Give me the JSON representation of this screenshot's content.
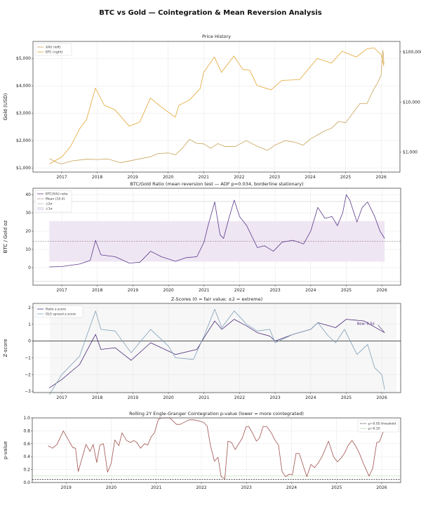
{
  "chart_data": [
    {
      "type": "line",
      "title": "Price History",
      "suptitle": "BTC vs Gold — Cointegration & Mean Reversion Analysis",
      "ylabel": "Gold (USD)",
      "xlim": [
        2016.19,
        2026.53
      ],
      "ylim": [
        850,
        5620
      ],
      "ylim_right": [
        400,
        162000
      ],
      "y_right_scale": "log",
      "xticks": [
        "2017",
        "2018",
        "2019",
        "2020",
        "2021",
        "2022",
        "2023",
        "2024",
        "2025",
        "2026"
      ],
      "yticks": [
        {
          "v": 1000,
          "label": "$1,000"
        },
        {
          "v": 2000,
          "label": "$2,000"
        },
        {
          "v": 3000,
          "label": "$3,000"
        },
        {
          "v": 4000,
          "label": "$4,000"
        },
        {
          "v": 5000,
          "label": "$5,000"
        }
      ],
      "yticks_right": [
        {
          "v": 1000,
          "label": "$1,000"
        },
        {
          "v": 10000,
          "label": "$10,000"
        },
        {
          "v": 100000,
          "label": "$100,000"
        }
      ],
      "legend_position": "top-left",
      "grid": true,
      "series": [
        {
          "name": "XAU (left)",
          "color": "#c9a45a",
          "axis": "left",
          "x": [
            2016.65,
            2016.9,
            2017.0,
            2017.3,
            2017.7,
            2018.0,
            2018.3,
            2018.65,
            2019.0,
            2019.5,
            2019.7,
            2020.0,
            2020.2,
            2020.4,
            2020.6,
            2020.8,
            2021.0,
            2021.2,
            2021.4,
            2021.6,
            2021.9,
            2022.2,
            2022.5,
            2022.8,
            2023.0,
            2023.3,
            2023.6,
            2023.8,
            2024.0,
            2024.2,
            2024.4,
            2024.6,
            2024.8,
            2025.0,
            2025.2,
            2025.4,
            2025.6,
            2025.8,
            2025.9,
            2026.0,
            2026.05,
            2026.08
          ],
          "y": [
            1340,
            1180,
            1150,
            1260,
            1320,
            1310,
            1330,
            1190,
            1280,
            1410,
            1520,
            1550,
            1480,
            1720,
            2050,
            1900,
            1880,
            1720,
            1890,
            1780,
            1790,
            2000,
            1800,
            1640,
            1830,
            2000,
            1930,
            1830,
            2050,
            2200,
            2350,
            2450,
            2700,
            2650,
            3000,
            3350,
            3350,
            3900,
            4100,
            4400,
            5300,
            4800
          ]
        },
        {
          "name": "BTC (right)",
          "color": "#e3a633",
          "axis": "right",
          "x": [
            2016.65,
            2017.0,
            2017.25,
            2017.5,
            2017.7,
            2017.95,
            2018.2,
            2018.5,
            2018.9,
            2019.2,
            2019.5,
            2019.8,
            2020.2,
            2020.3,
            2020.6,
            2020.9,
            2021.0,
            2021.3,
            2021.5,
            2021.85,
            2022.1,
            2022.3,
            2022.5,
            2022.9,
            2023.2,
            2023.7,
            2024.0,
            2024.2,
            2024.6,
            2024.9,
            2025.3,
            2025.6,
            2025.8,
            2026.0,
            2026.08
          ],
          "y": [
            580,
            800,
            1300,
            2900,
            4500,
            19000,
            8600,
            7000,
            3300,
            4000,
            12000,
            8000,
            5000,
            8600,
            11000,
            18500,
            39000,
            79000,
            39000,
            83000,
            45000,
            43000,
            21500,
            17500,
            27000,
            28000,
            50000,
            74000,
            60000,
            103000,
            79000,
            115000,
            121000,
            88000,
            52000
          ]
        }
      ]
    },
    {
      "type": "line",
      "title": "BTC/Gold Ratio (mean reversion test — ADF p=0.034, borderline stationary)",
      "ylabel": "BTC / Gold oz",
      "xlim": [
        2016.19,
        2026.53
      ],
      "ylim": [
        -9.6,
        43.5
      ],
      "xticks": [
        "2017",
        "2018",
        "2019",
        "2020",
        "2021",
        "2022",
        "2023",
        "2024",
        "2025",
        "2026"
      ],
      "yticks": [
        {
          "v": 0,
          "label": "0"
        },
        {
          "v": 10,
          "label": "10"
        },
        {
          "v": 20,
          "label": "20"
        },
        {
          "v": 30,
          "label": "30"
        },
        {
          "v": 40,
          "label": "40"
        }
      ],
      "mean": 14.4,
      "band_1sigma": [
        3.3,
        25.5
      ],
      "band_2sigma": [
        -7.4,
        36.2
      ],
      "legend": [
        "BTC/XAU ratio",
        "Mean (14.4)",
        "±2σ",
        "±1σ"
      ],
      "legend_position": "top-left",
      "colors": {
        "line": "#5b3a8c",
        "mean": "#7a5a6a",
        "band": "#efe6f3",
        "sigma2": "#cccccc"
      },
      "series": [
        {
          "name": "BTC/XAU ratio",
          "x": [
            2016.65,
            2017.0,
            2017.5,
            2017.8,
            2017.95,
            2018.1,
            2018.5,
            2018.9,
            2019.2,
            2019.5,
            2019.8,
            2020.2,
            2020.5,
            2020.8,
            2021.0,
            2021.1,
            2021.3,
            2021.45,
            2021.55,
            2021.7,
            2021.85,
            2022.0,
            2022.2,
            2022.4,
            2022.5,
            2022.7,
            2022.95,
            2023.2,
            2023.5,
            2023.8,
            2024.0,
            2024.2,
            2024.4,
            2024.6,
            2024.75,
            2024.9,
            2025.0,
            2025.1,
            2025.3,
            2025.45,
            2025.6,
            2025.8,
            2025.95,
            2026.08
          ],
          "y": [
            0.4,
            0.6,
            2,
            4,
            15,
            7,
            6,
            2.5,
            3,
            9,
            6,
            3.5,
            5.5,
            6,
            14,
            22,
            36,
            18,
            16,
            27,
            37,
            28,
            23,
            15,
            11,
            12,
            9,
            14,
            15,
            13,
            20,
            33,
            27,
            28,
            23,
            30,
            40,
            37,
            25,
            33,
            36,
            28,
            20,
            16
          ]
        }
      ]
    },
    {
      "type": "line",
      "title": "Z-Scores (0 = fair value; ±2 = extreme)",
      "ylabel": "Z-score",
      "xlim": [
        2016.19,
        2026.53
      ],
      "ylim": [
        -3.08,
        2.25
      ],
      "xticks": [
        "2017",
        "2018",
        "2019",
        "2020",
        "2021",
        "2022",
        "2023",
        "2024",
        "2025",
        "2026"
      ],
      "yticks": [
        {
          "v": -3,
          "label": "−3"
        },
        {
          "v": -2,
          "label": "−2"
        },
        {
          "v": -1,
          "label": "−1"
        },
        {
          "v": 0,
          "label": "0"
        },
        {
          "v": 1,
          "label": "1"
        },
        {
          "v": 2,
          "label": "2"
        }
      ],
      "annotation": {
        "text": "Now: 0.5σ",
        "x": 2025.3,
        "y": 1.05,
        "arrow_to": [
          2026.08,
          0.5
        ]
      },
      "legend_position": "top-left",
      "series": [
        {
          "name": "Ratio z-score",
          "color": "#4b2a7a",
          "x": [
            2016.65,
            2017.0,
            2017.5,
            2017.95,
            2018.1,
            2018.5,
            2018.95,
            2019.5,
            2020.0,
            2020.2,
            2020.8,
            2021.0,
            2021.3,
            2021.5,
            2021.85,
            2022.2,
            2022.5,
            2022.85,
            2023.0,
            2023.5,
            2024.0,
            2024.2,
            2024.7,
            2025.0,
            2025.5,
            2026.08
          ],
          "y": [
            -2.8,
            -2.3,
            -1.4,
            0.4,
            -0.5,
            -0.4,
            -1.15,
            -0.1,
            -0.6,
            -0.8,
            -0.5,
            0.2,
            1.2,
            0.7,
            1.3,
            0.9,
            0.5,
            0.3,
            0,
            0.4,
            0.7,
            1.1,
            0.8,
            1.3,
            1.2,
            0.5
          ]
        },
        {
          "name": "OLS spread z-score",
          "color": "#7fa0b8",
          "x": [
            2016.65,
            2017.0,
            2017.5,
            2017.95,
            2018.1,
            2018.5,
            2018.95,
            2019.5,
            2020.0,
            2020.2,
            2020.7,
            2021.0,
            2021.3,
            2021.5,
            2021.85,
            2022.2,
            2022.5,
            2022.85,
            2023.0,
            2023.5,
            2024.0,
            2024.2,
            2024.5,
            2024.7,
            2024.95,
            2025.3,
            2025.6,
            2025.8,
            2026.0,
            2026.08
          ],
          "y": [
            -3.2,
            -2.0,
            -0.9,
            1.8,
            0.7,
            0.6,
            -0.7,
            0.7,
            -0.3,
            -1.0,
            -1.1,
            0.3,
            1.9,
            0.8,
            1.8,
            1.0,
            0.6,
            0.7,
            -0.1,
            0.4,
            0.7,
            1.1,
            0.3,
            -0.1,
            0.7,
            -0.8,
            -0.2,
            -1.6,
            -2.0,
            -2.9
          ]
        }
      ]
    },
    {
      "type": "line",
      "title": "Rolling 2Y Engle-Granger Cointegration p-value (lower = more cointegrated)",
      "ylabel": "p-value",
      "xlim": [
        2018.25,
        2026.42
      ],
      "ylim": [
        0,
        1
      ],
      "xticks": [
        "2019",
        "2020",
        "2021",
        "2022",
        "2023",
        "2024",
        "2025",
        "2026"
      ],
      "yticks": [
        {
          "v": 0,
          "label": "0.0"
        },
        {
          "v": 0.2,
          "label": "0.2"
        },
        {
          "v": 0.4,
          "label": "0.4"
        },
        {
          "v": 0.6,
          "label": "0.6"
        },
        {
          "v": 0.8,
          "label": "0.8"
        },
        {
          "v": 1.0,
          "label": "1.0"
        }
      ],
      "thresholds": [
        {
          "name": "p=0.05 threshold",
          "v": 0.05,
          "color": "#222222",
          "dash": true
        },
        {
          "name": "p=0.10",
          "v": 0.1,
          "color": "#b9d9a8",
          "dash": false
        }
      ],
      "legend_position": "top-right",
      "series": [
        {
          "name": "p-value",
          "color": "#a0524d",
          "x": [
            2018.6,
            2018.7,
            2018.8,
            2018.94,
            2019.1,
            2019.15,
            2019.21,
            2019.27,
            2019.44,
            2019.53,
            2019.6,
            2019.68,
            2019.75,
            2019.83,
            2019.92,
            2020.0,
            2020.08,
            2020.17,
            2020.24,
            2020.34,
            2020.43,
            2020.5,
            2020.57,
            2020.65,
            2020.74,
            2020.81,
            2020.89,
            2020.96,
            2021.05,
            2021.12,
            2021.3,
            2021.45,
            2021.53,
            2021.72,
            2021.84,
            2021.96,
            2022.05,
            2022.13,
            2022.2,
            2022.29,
            2022.37,
            2022.44,
            2022.52,
            2022.59,
            2022.67,
            2022.75,
            2022.83,
            2022.91,
            2022.99,
            2023.05,
            2023.13,
            2023.22,
            2023.29,
            2023.37,
            2023.46,
            2023.55,
            2023.63,
            2023.71,
            2023.79,
            2023.87,
            2023.95,
            2024.02,
            2024.1,
            2024.17,
            2024.26,
            2024.34,
            2024.43,
            2024.51,
            2024.59,
            2024.69,
            2024.82,
            2024.93,
            2025.02,
            2025.1,
            2025.18,
            2025.26,
            2025.34,
            2025.42,
            2025.5,
            2025.59,
            2025.72,
            2025.8,
            2025.89,
            2025.95,
            2026.04
          ],
          "y": [
            0.57,
            0.53,
            0.59,
            0.8,
            0.6,
            0.54,
            0.53,
            0.17,
            0.59,
            0.48,
            0.59,
            0.31,
            0.58,
            0.6,
            0.16,
            0.3,
            0.66,
            0.57,
            0.77,
            0.65,
            0.62,
            0.65,
            0.62,
            0.53,
            0.6,
            0.58,
            0.71,
            0.77,
            0.98,
            1.0,
            1.0,
            0.9,
            0.9,
            0.97,
            0.97,
            0.95,
            0.93,
            0.87,
            0.58,
            0.33,
            0.39,
            0.09,
            0.06,
            0.64,
            0.62,
            0.51,
            0.6,
            0.69,
            0.86,
            0.87,
            0.77,
            0.64,
            0.69,
            0.87,
            0.86,
            0.77,
            0.66,
            0.58,
            0.17,
            0.09,
            0.13,
            0.12,
            0.45,
            0.45,
            0.26,
            0.09,
            0.28,
            0.23,
            0.3,
            0.42,
            0.64,
            0.4,
            0.32,
            0.38,
            0.46,
            0.58,
            0.65,
            0.57,
            0.46,
            0.3,
            0.1,
            0.22,
            0.62,
            0.63,
            0.8
          ]
        }
      ]
    }
  ]
}
